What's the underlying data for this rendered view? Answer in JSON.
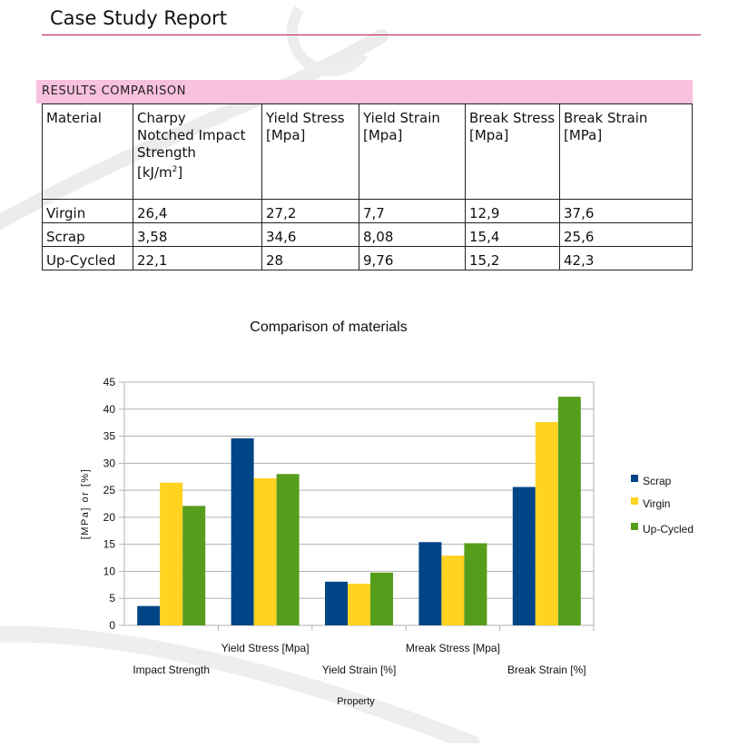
{
  "header": {
    "title": "Case Study Report"
  },
  "section": {
    "label": "RESULTS COMPARISON"
  },
  "table": {
    "headers": {
      "material": "Material",
      "impact_l1": "Charpy",
      "impact_l2": "Notched",
      "impact_l3": "Impact Strength",
      "impact_unit": "[kJ/m",
      "impact_sup": "2",
      "impact_close": "]",
      "yield_stress_l1": "Yield Stress",
      "yield_stress_l2": "[Mpa]",
      "yield_strain_l1": "Yield Strain",
      "yield_strain_l2": "[Mpa]",
      "break_stress_l1": "Break Stress",
      "break_stress_l2": "[Mpa]",
      "break_strain_l1": "Break Strain",
      "break_strain_l2": "[MPa]"
    },
    "rows": [
      [
        "Virgin",
        "26,4",
        "27,2",
        "7,7",
        "12,9",
        "37,6"
      ],
      [
        "Scrap",
        "3,58",
        "34,6",
        "8,08",
        "15,4",
        "25,6"
      ],
      [
        "Up-Cycled",
        "22,1",
        "28",
        "9,76",
        "15,2",
        "42,3"
      ]
    ]
  },
  "colors": {
    "scrap": "#004586",
    "virgin": "#ffd320",
    "upcycled": "#579d1c",
    "accent_rule": "#c2185b",
    "band": "#f8c1de"
  },
  "chart_data": {
    "type": "bar",
    "title": "Comparison of materials",
    "xlabel": "Property",
    "ylabel": "[MPa] or [%]",
    "ylim": [
      0,
      45
    ],
    "yticks": [
      0,
      5,
      10,
      15,
      20,
      25,
      30,
      35,
      40,
      45
    ],
    "grid": true,
    "legend_position": "right",
    "categories": [
      "Impact Strength",
      "Yield Stress [Mpa]",
      "Yield Strain [%]",
      "Mreak Stress [Mpa]",
      "Break Strain [%]"
    ],
    "series": [
      {
        "name": "Scrap",
        "values": [
          3.58,
          34.6,
          8.08,
          15.4,
          25.6
        ]
      },
      {
        "name": "Virgin",
        "values": [
          26.4,
          27.2,
          7.7,
          12.9,
          37.6
        ]
      },
      {
        "name": "Up-Cycled",
        "values": [
          22.1,
          28,
          9.76,
          15.2,
          42.3
        ]
      }
    ]
  }
}
